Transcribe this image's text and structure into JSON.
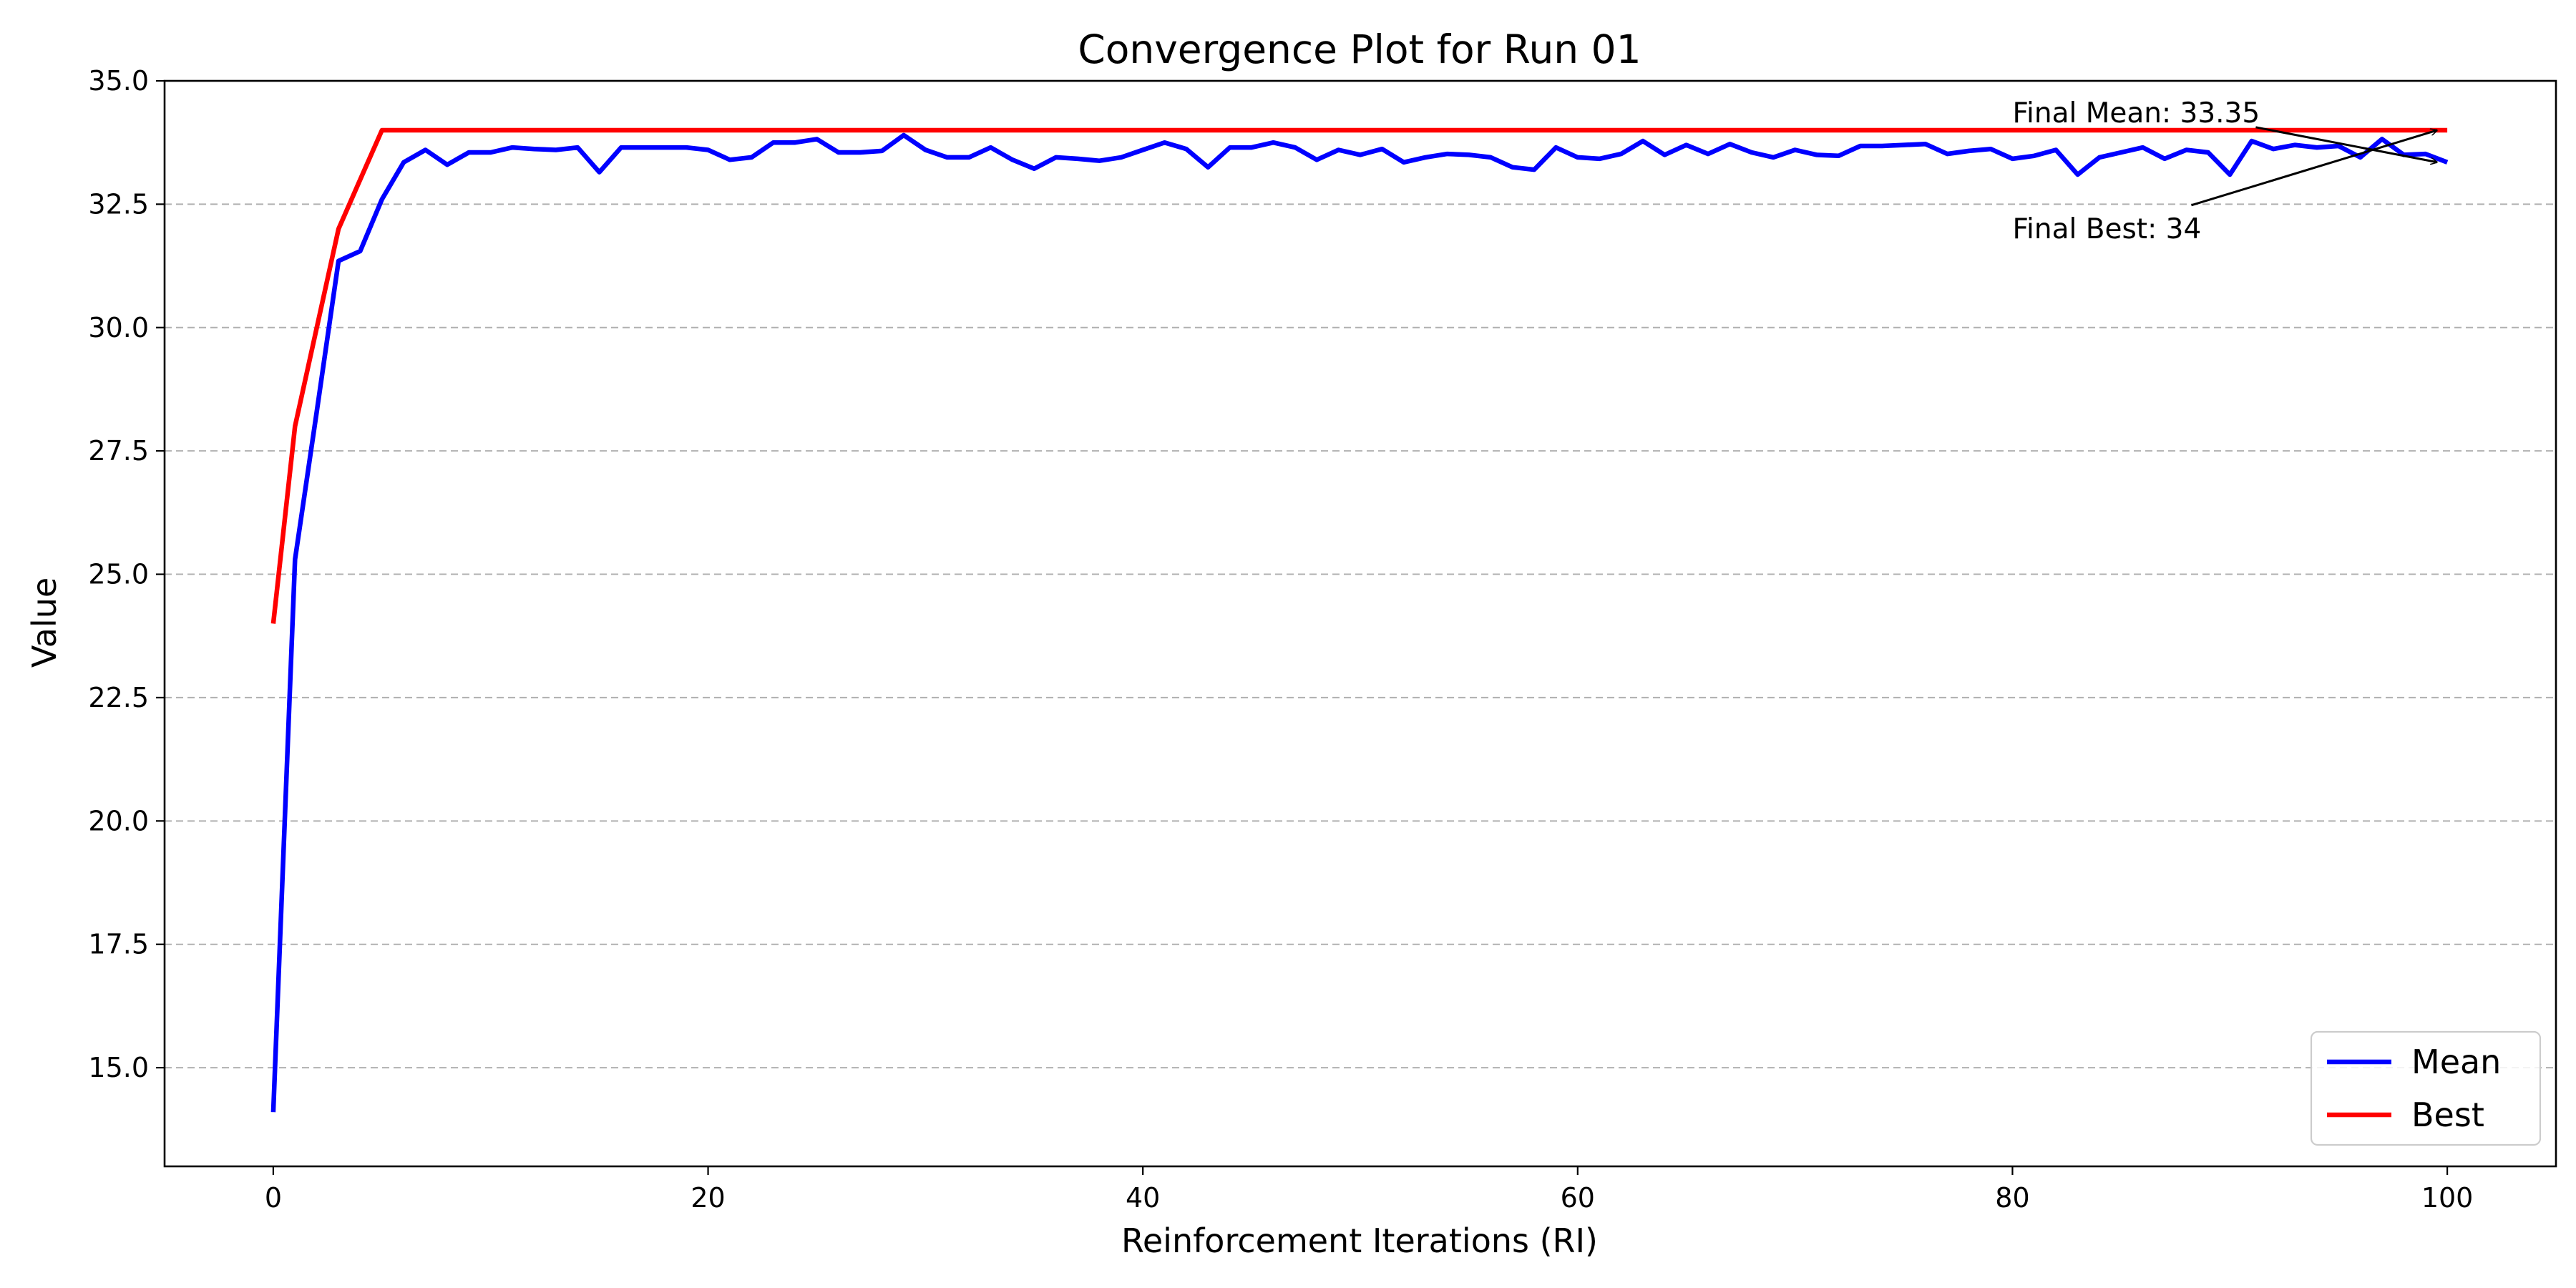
{
  "chart_data": {
    "type": "line",
    "title": "Convergence Plot for Run 01",
    "xlabel": "Reinforcement Iterations (RI)",
    "ylabel": "Value",
    "xlim": [
      -5,
      105
    ],
    "ylim": [
      13.0,
      35.0
    ],
    "xticks": [
      0,
      20,
      40,
      60,
      80,
      100
    ],
    "yticks": [
      15.0,
      17.5,
      20.0,
      22.5,
      25.0,
      27.5,
      30.0,
      32.5,
      35.0
    ],
    "ytick_labels": [
      "15.0",
      "17.5",
      "20.0",
      "22.5",
      "25.0",
      "27.5",
      "30.0",
      "32.5",
      "35.0"
    ],
    "grid": "y-dashed",
    "legend_position": "bottom-right",
    "series": [
      {
        "name": "Mean",
        "color": "#0000ff",
        "x": [
          0,
          1,
          2,
          3,
          4,
          5,
          6,
          7,
          8,
          9,
          10,
          11,
          12,
          13,
          14,
          15,
          16,
          17,
          18,
          19,
          20,
          21,
          22,
          23,
          24,
          25,
          26,
          27,
          28,
          29,
          30,
          31,
          32,
          33,
          34,
          35,
          36,
          37,
          38,
          39,
          40,
          41,
          42,
          43,
          44,
          45,
          46,
          47,
          48,
          49,
          50,
          51,
          52,
          53,
          54,
          55,
          56,
          57,
          58,
          59,
          60,
          61,
          62,
          63,
          64,
          65,
          66,
          67,
          68,
          69,
          70,
          71,
          72,
          73,
          74,
          75,
          76,
          77,
          78,
          79,
          80,
          81,
          82,
          83,
          84,
          85,
          86,
          87,
          88,
          89,
          90,
          91,
          92,
          93,
          94,
          95,
          96,
          97,
          98,
          99,
          100
        ],
        "values": [
          14.1,
          25.3,
          28.3,
          31.35,
          31.55,
          32.6,
          33.35,
          33.6,
          33.3,
          33.55,
          33.55,
          33.65,
          33.62,
          33.6,
          33.65,
          33.15,
          33.65,
          33.65,
          33.65,
          33.65,
          33.6,
          33.4,
          33.45,
          33.75,
          33.75,
          33.82,
          33.55,
          33.55,
          33.58,
          33.9,
          33.6,
          33.45,
          33.45,
          33.65,
          33.4,
          33.22,
          33.45,
          33.42,
          33.38,
          33.45,
          33.6,
          33.75,
          33.62,
          33.25,
          33.65,
          33.65,
          33.75,
          33.65,
          33.4,
          33.6,
          33.5,
          33.62,
          33.35,
          33.45,
          33.52,
          33.5,
          33.45,
          33.25,
          33.2,
          33.65,
          33.45,
          33.42,
          33.52,
          33.78,
          33.5,
          33.7,
          33.52,
          33.72,
          33.55,
          33.45,
          33.6,
          33.5,
          33.48,
          33.68,
          33.68,
          33.7,
          33.72,
          33.52,
          33.58,
          33.62,
          33.42,
          33.48,
          33.6,
          33.1,
          33.45,
          33.55,
          33.65,
          33.42,
          33.6,
          33.55,
          33.1,
          33.78,
          33.62,
          33.7,
          33.65,
          33.68,
          33.45,
          33.82,
          33.5,
          33.52,
          33.35
        ]
      },
      {
        "name": "Best",
        "color": "#ff0000",
        "x": [
          0,
          1,
          2,
          3,
          4,
          5,
          100
        ],
        "values": [
          24.0,
          28.0,
          30.0,
          32.0,
          33.0,
          34.0,
          34.0
        ]
      }
    ],
    "annotations": [
      {
        "text": "Final Mean: 33.35",
        "x": 100,
        "y": 33.35,
        "text_x": 80,
        "text_y": 34.35
      },
      {
        "text": "Final Best: 34",
        "x": 100,
        "y": 34.0,
        "text_x": 80,
        "text_y": 32.0
      }
    ]
  }
}
